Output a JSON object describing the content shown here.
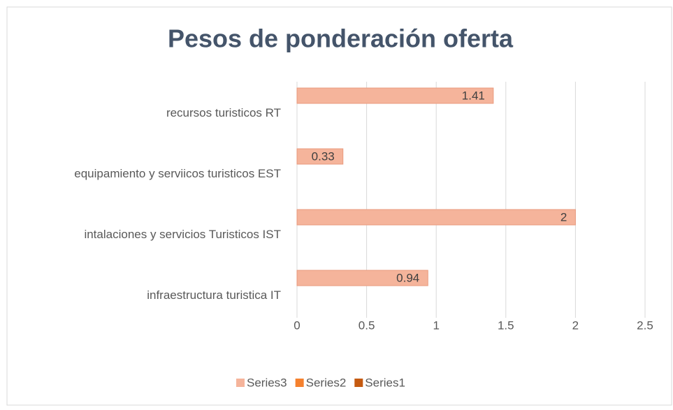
{
  "chart_data": {
    "type": "hbar",
    "title": "Pesos de ponderación oferta",
    "categories": [
      "recursos turisticos RT",
      "equipamiento y serviicos turisticos EST",
      "intalaciones y servicios Turisticos IST",
      "infraestructura  turistica  IT"
    ],
    "series": [
      {
        "name": "Series3",
        "color": "#f5b49b",
        "values": [
          1.41,
          0.33,
          2,
          0.94
        ]
      },
      {
        "name": "Series2",
        "color": "#f5812e",
        "values": [
          null,
          null,
          null,
          null
        ]
      },
      {
        "name": "Series1",
        "color": "#c55a11",
        "values": [
          null,
          null,
          null,
          null
        ]
      }
    ],
    "xlim": [
      0,
      2.5
    ],
    "xticks": [
      0,
      0.5,
      1,
      1.5,
      2,
      2.5
    ],
    "grid": true,
    "legend": "bottom"
  }
}
